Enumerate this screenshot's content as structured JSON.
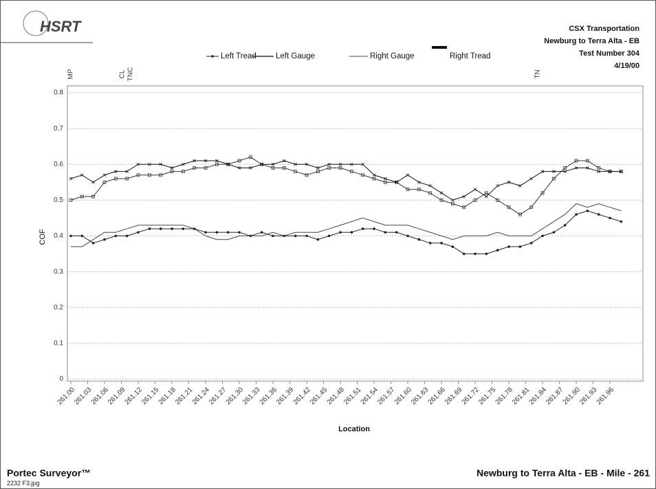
{
  "header": {
    "logo": "HSRT",
    "lines": [
      "CSX Transportation",
      "Newburg to Terra Alta - EB",
      "Test Number 304",
      "4/19/00"
    ]
  },
  "footer": {
    "left": "Portec Surveyor™",
    "file": "2232 F3.jpg",
    "right": "Newburg to Terra Alta - EB - Mile - 261"
  },
  "chart_data": {
    "type": "line",
    "xlabel": "Location",
    "ylabel": "COF",
    "annotations": [
      "MP",
      "CL",
      "TNC",
      "TN"
    ],
    "x": [
      261.0,
      261.02,
      261.04,
      261.06,
      261.08,
      261.1,
      261.12,
      261.14,
      261.16,
      261.18,
      261.2,
      261.22,
      261.24,
      261.26,
      261.28,
      261.3,
      261.32,
      261.34,
      261.36,
      261.38,
      261.4,
      261.42,
      261.44,
      261.46,
      261.48,
      261.5,
      261.52,
      261.54,
      261.56,
      261.58,
      261.6,
      261.62,
      261.64,
      261.66,
      261.68,
      261.7,
      261.72,
      261.74,
      261.76,
      261.78,
      261.8,
      261.82,
      261.84,
      261.86,
      261.88,
      261.9,
      261.92,
      261.94,
      261.96,
      261.98
    ],
    "series": [
      {
        "name": "Left Tread",
        "color": "#222",
        "marker": "circle",
        "values": [
          0.4,
          0.4,
          0.38,
          0.39,
          0.4,
          0.4,
          0.41,
          0.42,
          0.42,
          0.42,
          0.42,
          0.42,
          0.41,
          0.41,
          0.41,
          0.41,
          0.4,
          0.41,
          0.4,
          0.4,
          0.4,
          0.4,
          0.39,
          0.4,
          0.41,
          0.41,
          0.42,
          0.42,
          0.41,
          0.41,
          0.4,
          0.39,
          0.38,
          0.38,
          0.37,
          0.35,
          0.35,
          0.35,
          0.36,
          0.37,
          0.37,
          0.38,
          0.4,
          0.41,
          0.43,
          0.46,
          0.47,
          0.46,
          0.45,
          0.44
        ]
      },
      {
        "name": "Left Gauge",
        "color": "#333",
        "marker": "square",
        "values": [
          0.5,
          0.51,
          0.51,
          0.55,
          0.56,
          0.56,
          0.57,
          0.57,
          0.57,
          0.58,
          0.58,
          0.59,
          0.59,
          0.6,
          0.6,
          0.61,
          0.62,
          0.6,
          0.59,
          0.59,
          0.58,
          0.57,
          0.58,
          0.59,
          0.59,
          0.58,
          0.57,
          0.56,
          0.55,
          0.55,
          0.53,
          0.53,
          0.52,
          0.5,
          0.49,
          0.48,
          0.5,
          0.52,
          0.5,
          0.48,
          0.46,
          0.48,
          0.52,
          0.56,
          0.59,
          0.61,
          0.61,
          0.59,
          0.58,
          0.58
        ]
      },
      {
        "name": "Right Gauge",
        "color": "#444",
        "marker": "none",
        "values": [
          0.37,
          0.37,
          0.39,
          0.41,
          0.41,
          0.42,
          0.43,
          0.43,
          0.43,
          0.43,
          0.43,
          0.42,
          0.4,
          0.39,
          0.39,
          0.4,
          0.4,
          0.4,
          0.41,
          0.4,
          0.41,
          0.41,
          0.41,
          0.42,
          0.43,
          0.44,
          0.45,
          0.44,
          0.43,
          0.43,
          0.43,
          0.42,
          0.41,
          0.4,
          0.39,
          0.4,
          0.4,
          0.4,
          0.41,
          0.4,
          0.4,
          0.4,
          0.42,
          0.44,
          0.46,
          0.49,
          0.48,
          0.49,
          0.48,
          0.47
        ]
      },
      {
        "name": "Right Tread",
        "color": "#111",
        "marker": "cross",
        "values": [
          0.56,
          0.57,
          0.55,
          0.57,
          0.58,
          0.58,
          0.6,
          0.6,
          0.6,
          0.59,
          0.6,
          0.61,
          0.61,
          0.61,
          0.6,
          0.59,
          0.59,
          0.6,
          0.6,
          0.61,
          0.6,
          0.6,
          0.59,
          0.6,
          0.6,
          0.6,
          0.6,
          0.57,
          0.56,
          0.55,
          0.57,
          0.55,
          0.54,
          0.52,
          0.5,
          0.51,
          0.53,
          0.51,
          0.54,
          0.55,
          0.54,
          0.56,
          0.58,
          0.58,
          0.58,
          0.59,
          0.59,
          0.58,
          0.58,
          0.58
        ]
      }
    ],
    "xlim": [
      261.0,
      262.02
    ],
    "xticks": [
      {
        "value": 261.0,
        "label": "261.00"
      },
      {
        "value": 261.03,
        "label": "261.03"
      },
      {
        "value": 261.06,
        "label": "261.06"
      },
      {
        "value": 261.09,
        "label": "261.09"
      },
      {
        "value": 261.12,
        "label": "261.12"
      },
      {
        "value": 261.15,
        "label": "261.15"
      },
      {
        "value": 261.18,
        "label": "261.18"
      },
      {
        "value": 261.21,
        "label": "261.21"
      },
      {
        "value": 261.24,
        "label": "261.24"
      },
      {
        "value": 261.27,
        "label": "261.27"
      },
      {
        "value": 261.3,
        "label": "261.30"
      },
      {
        "value": 261.33,
        "label": "261.33"
      },
      {
        "value": 261.36,
        "label": "261.36"
      },
      {
        "value": 261.39,
        "label": "261.39"
      },
      {
        "value": 261.42,
        "label": "261.42"
      },
      {
        "value": 261.45,
        "label": "261.45"
      },
      {
        "value": 261.48,
        "label": "261.48"
      },
      {
        "value": 261.51,
        "label": "261.51"
      },
      {
        "value": 261.54,
        "label": "261.54"
      },
      {
        "value": 261.57,
        "label": "261.57"
      },
      {
        "value": 261.6,
        "label": "261.60"
      },
      {
        "value": 261.63,
        "label": "261.63"
      },
      {
        "value": 261.66,
        "label": "261.66"
      },
      {
        "value": 261.69,
        "label": "261.69"
      },
      {
        "value": 261.72,
        "label": "261.72"
      },
      {
        "value": 261.75,
        "label": "261.75"
      },
      {
        "value": 261.78,
        "label": "261.78"
      },
      {
        "value": 261.81,
        "label": "261.81"
      },
      {
        "value": 261.84,
        "label": "261.84"
      },
      {
        "value": 261.87,
        "label": "261.87"
      },
      {
        "value": 261.9,
        "label": "261.90"
      },
      {
        "value": 261.93,
        "label": "261.93"
      },
      {
        "value": 261.96,
        "label": "261.96"
      }
    ],
    "ylim": [
      0,
      0.8
    ],
    "yticks": [
      0,
      0.1,
      0.2,
      0.3,
      0.4,
      0.5,
      0.6,
      0.7,
      0.8
    ],
    "grid": true
  }
}
